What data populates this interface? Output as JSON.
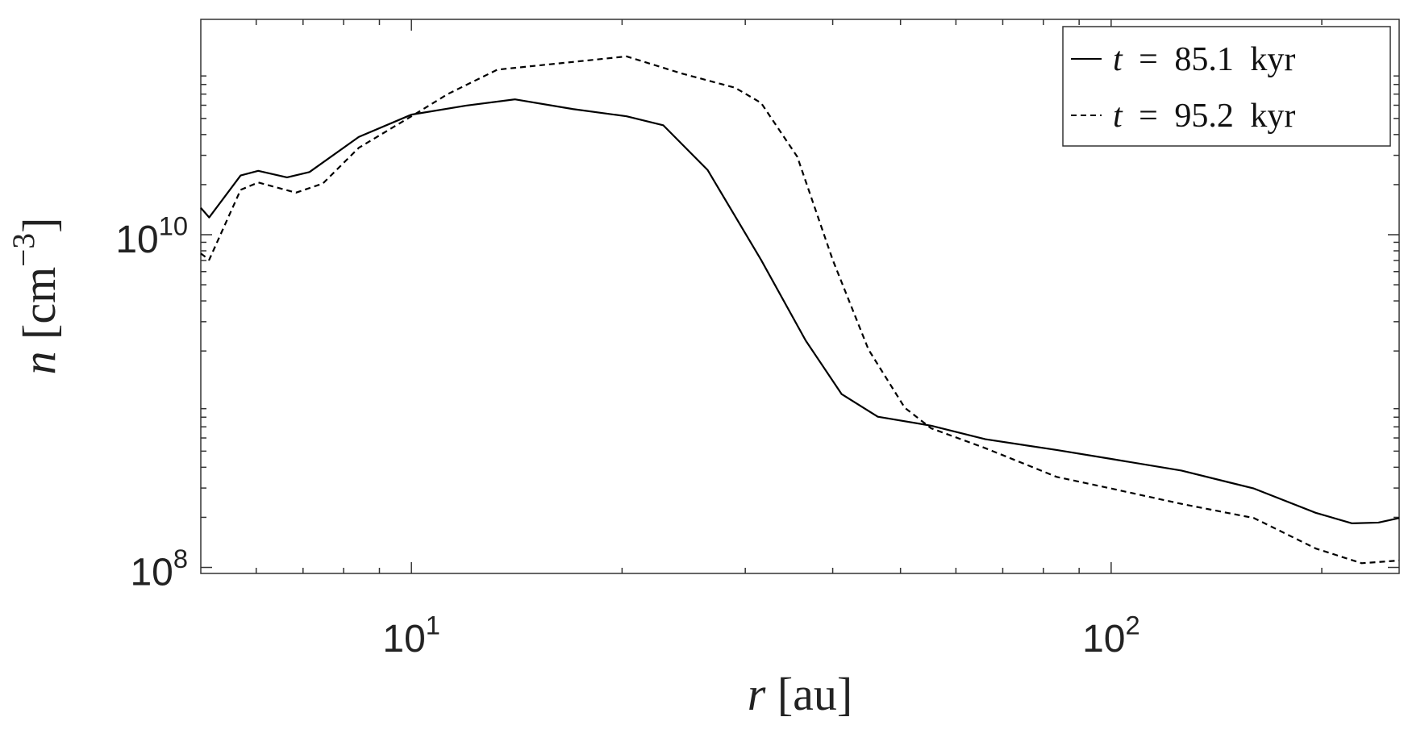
{
  "chart_data": {
    "type": "line",
    "xlabel": "r [au]",
    "ylabel": "n [cm^{−3}]",
    "xlog": true,
    "ylog": true,
    "xlim": [
      5,
      258
    ],
    "ylim": [
      92000000,
      197000000000
    ],
    "xticks": [
      {
        "value": 10,
        "label": "10^{1}"
      },
      {
        "value": 100,
        "label": "10^{2}"
      }
    ],
    "yticks": [
      {
        "value": 100000000,
        "label": "10^{8}"
      },
      {
        "value": 10000000000,
        "label": "10^{10}"
      }
    ],
    "legend": "upper right",
    "series": [
      {
        "name": "t = 85.1 kyr",
        "color": "#000000",
        "style": "solid",
        "x": [
          5.0,
          5.14,
          5.7,
          6.04,
          6.64,
          7.15,
          8.41,
          10,
          11.97,
          14.06,
          17.02,
          20.3,
          22.9,
          26.5,
          31.6,
          36.6,
          41.2,
          46.4,
          55.3,
          66.1,
          83.6,
          100,
          126,
          160,
          196,
          221,
          241,
          258
        ],
        "values": [
          14500000000,
          12700000000,
          22700000000,
          24200000000,
          22100000000,
          23800000000,
          38700000000,
          52700000000,
          59700000000,
          65100000000,
          56900000000,
          51500000000,
          45500000000,
          24500000000,
          7060000000,
          2310000000,
          1100000000,
          805000000,
          711000000,
          590000000,
          508000000,
          449000000,
          382000000,
          298000000,
          213000000,
          184000000,
          186000000,
          198000000
        ]
      },
      {
        "name": "t = 95.2 kyr",
        "color": "#000000",
        "style": "dashed",
        "x": [
          5.0,
          5.14,
          5.7,
          6.04,
          6.84,
          7.47,
          8.41,
          10,
          11.28,
          13.27,
          16.56,
          20.3,
          24.3,
          29.0,
          31.6,
          35.6,
          40.0,
          45.0,
          50.7,
          55.3,
          66.1,
          83.6,
          100,
          126,
          160,
          196,
          228,
          258
        ],
        "values": [
          7710000000,
          7070000000,
          18600000000,
          20600000000,
          17900000000,
          20300000000,
          33300000000,
          51500000000,
          70200000000,
          98200000000,
          108000000000,
          118000000000,
          93300000000,
          76500000000,
          62000000000,
          29400000000,
          7060000000,
          2040000000,
          912000000,
          686000000,
          521000000,
          350000000,
          298000000,
          241000000,
          198000000,
          130000000,
          106000000,
          110000000
        ]
      }
    ]
  }
}
